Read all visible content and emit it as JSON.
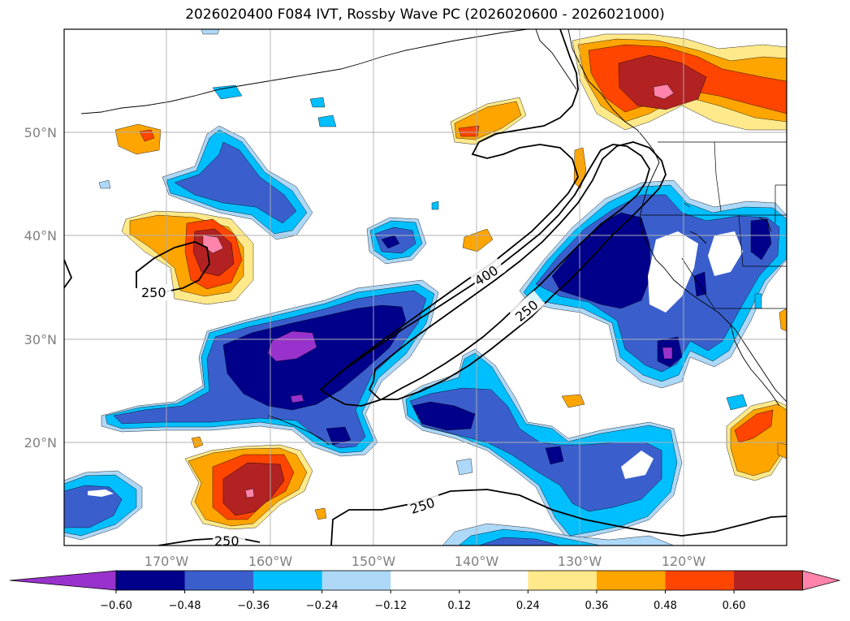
{
  "title": "2026020400 F084 IVT, Rossby Wave PC (2026020600 - 2026021000)",
  "lat_labels": [
    "50°N",
    "40°N",
    "30°N",
    "20°N"
  ],
  "lon_labels": [
    "170°W",
    "160°W",
    "150°W",
    "140°W",
    "130°W",
    "120°W"
  ],
  "contour_labels": [
    "250",
    "400",
    "250",
    "250",
    "250"
  ],
  "colorbar": {
    "ticks": [
      "−0.60",
      "−0.48",
      "−0.36",
      "−0.24",
      "−0.12",
      "0.12",
      "0.24",
      "0.36",
      "0.48",
      "0.60"
    ],
    "colors": [
      "#9932cc",
      "#00008b",
      "#3a5fcd",
      "#00bfff",
      "#add8f8",
      "#ffffff",
      "#ffffff",
      "#ffe98a",
      "#ffa500",
      "#ff4500",
      "#b22222",
      "#ff83aa"
    ]
  },
  "fill_colors": {
    "pos1": "#ffe98a",
    "pos2": "#ffa500",
    "pos3": "#ff4500",
    "pos4": "#b22222",
    "pos5": "#ff83aa",
    "neg1": "#add8f8",
    "neg2": "#00bfff",
    "neg3": "#3a5fcd",
    "neg4": "#00008b",
    "neg5": "#9932cc"
  }
}
